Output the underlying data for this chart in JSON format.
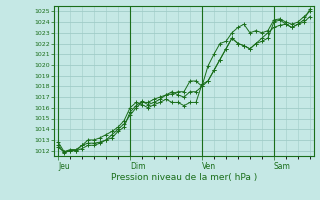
{
  "title": "Pression niveau de la mer( hPa )",
  "background_color": "#c5e8e5",
  "grid_color": "#a0ccc8",
  "line_color": "#1a6e1a",
  "ylim": [
    1011.5,
    1025.5
  ],
  "yticks": [
    1012,
    1013,
    1014,
    1015,
    1016,
    1017,
    1018,
    1019,
    1020,
    1021,
    1022,
    1023,
    1024,
    1025
  ],
  "day_labels": [
    "Jeu",
    "Dim",
    "Ven",
    "Sam"
  ],
  "day_positions": [
    0,
    96,
    192,
    288
  ],
  "total_points": 336,
  "series": [
    [
      0,
      1012.5,
      8,
      1011.8,
      16,
      1012.0,
      24,
      1012.0,
      32,
      1012.5,
      40,
      1012.7,
      48,
      1012.7,
      56,
      1012.8,
      64,
      1013.0,
      72,
      1013.2,
      80,
      1013.8,
      88,
      1014.2,
      96,
      1015.6,
      104,
      1016.2,
      112,
      1016.6,
      120,
      1016.3,
      128,
      1016.5,
      136,
      1016.8,
      144,
      1017.2,
      152,
      1017.3,
      160,
      1017.5,
      168,
      1017.5,
      176,
      1018.5,
      184,
      1018.5,
      192,
      1018.0,
      200,
      1019.9,
      208,
      1021.0,
      216,
      1022.0,
      224,
      1022.2,
      232,
      1023.0,
      240,
      1023.5,
      248,
      1023.8,
      256,
      1023.0,
      264,
      1023.2,
      272,
      1023.0,
      280,
      1023.2,
      288,
      1024.2,
      296,
      1024.3,
      304,
      1024.0,
      312,
      1023.8,
      320,
      1024.0,
      328,
      1024.5,
      336,
      1025.0
    ],
    [
      0,
      1012.3,
      8,
      1011.9,
      16,
      1012.0,
      24,
      1012.0,
      32,
      1012.2,
      40,
      1012.5,
      48,
      1012.5,
      56,
      1012.7,
      64,
      1013.0,
      72,
      1013.5,
      80,
      1014.0,
      88,
      1014.5,
      96,
      1015.3,
      104,
      1016.0,
      112,
      1016.5,
      120,
      1016.5,
      128,
      1016.8,
      136,
      1017.0,
      144,
      1017.2,
      152,
      1017.5,
      160,
      1017.2,
      168,
      1017.0,
      176,
      1017.5,
      184,
      1017.5,
      192,
      1018.0,
      200,
      1018.5,
      208,
      1019.5,
      216,
      1020.5,
      224,
      1021.5,
      232,
      1022.5,
      240,
      1022.0,
      248,
      1021.8,
      256,
      1021.5,
      264,
      1022.0,
      272,
      1022.2,
      280,
      1022.5,
      288,
      1024.0,
      296,
      1024.2,
      304,
      1023.8,
      312,
      1023.5,
      320,
      1023.8,
      328,
      1024.2,
      336,
      1025.2
    ],
    [
      0,
      1012.8,
      8,
      1011.9,
      16,
      1012.1,
      24,
      1012.1,
      32,
      1012.5,
      40,
      1013.0,
      48,
      1013.0,
      56,
      1013.2,
      64,
      1013.5,
      72,
      1013.8,
      80,
      1014.2,
      88,
      1014.8,
      96,
      1016.0,
      104,
      1016.5,
      112,
      1016.3,
      120,
      1016.0,
      128,
      1016.3,
      136,
      1016.5,
      144,
      1016.8,
      152,
      1016.5,
      160,
      1016.5,
      168,
      1016.2,
      176,
      1016.5,
      184,
      1016.5,
      192,
      1018.2,
      200,
      1018.5,
      208,
      1019.5,
      216,
      1020.5,
      224,
      1021.5,
      232,
      1022.5,
      240,
      1022.0,
      248,
      1021.8,
      256,
      1021.5,
      264,
      1022.0,
      272,
      1022.5,
      280,
      1023.0,
      288,
      1023.5,
      296,
      1023.7,
      304,
      1023.8,
      312,
      1023.5,
      320,
      1023.8,
      328,
      1024.0,
      336,
      1024.5
    ]
  ]
}
